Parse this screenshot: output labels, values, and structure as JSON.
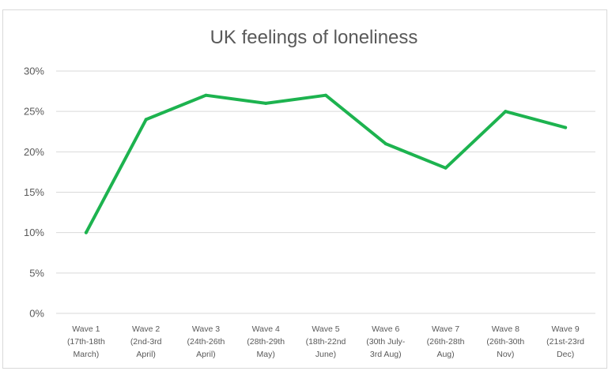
{
  "chart_data": {
    "type": "line",
    "title": "UK feelings of loneliness",
    "xlabel": "",
    "ylabel": "",
    "categories": [
      [
        "Wave 1",
        "(17th-18th",
        "March)"
      ],
      [
        "Wave 2",
        "(2nd-3rd",
        "April)"
      ],
      [
        "Wave 3",
        "(24th-26th",
        "April)"
      ],
      [
        "Wave 4",
        "(28th-29th",
        "May)"
      ],
      [
        "Wave 5",
        "(18th-22nd",
        "June)"
      ],
      [
        "Wave 6",
        "(30th July-",
        "3rd Aug)"
      ],
      [
        "Wave 7",
        "(26th-28th",
        "Aug)"
      ],
      [
        "Wave 8",
        "(26th-30th",
        "Nov)"
      ],
      [
        "Wave 9",
        "(21st-23rd",
        "Dec)"
      ]
    ],
    "series": [
      {
        "values": [
          10,
          24,
          27,
          26,
          27,
          21,
          18,
          25,
          23
        ]
      }
    ],
    "ylim": [
      0,
      30
    ],
    "yticks": [
      0,
      5,
      10,
      15,
      20,
      25,
      30
    ],
    "ytick_labels": [
      "0%",
      "5%",
      "10%",
      "15%",
      "20%",
      "25%",
      "30%"
    ],
    "grid": true,
    "legend": "none",
    "line_color": "#1db34f",
    "grid_color": "#d9d9d9",
    "text_color": "#595959"
  }
}
